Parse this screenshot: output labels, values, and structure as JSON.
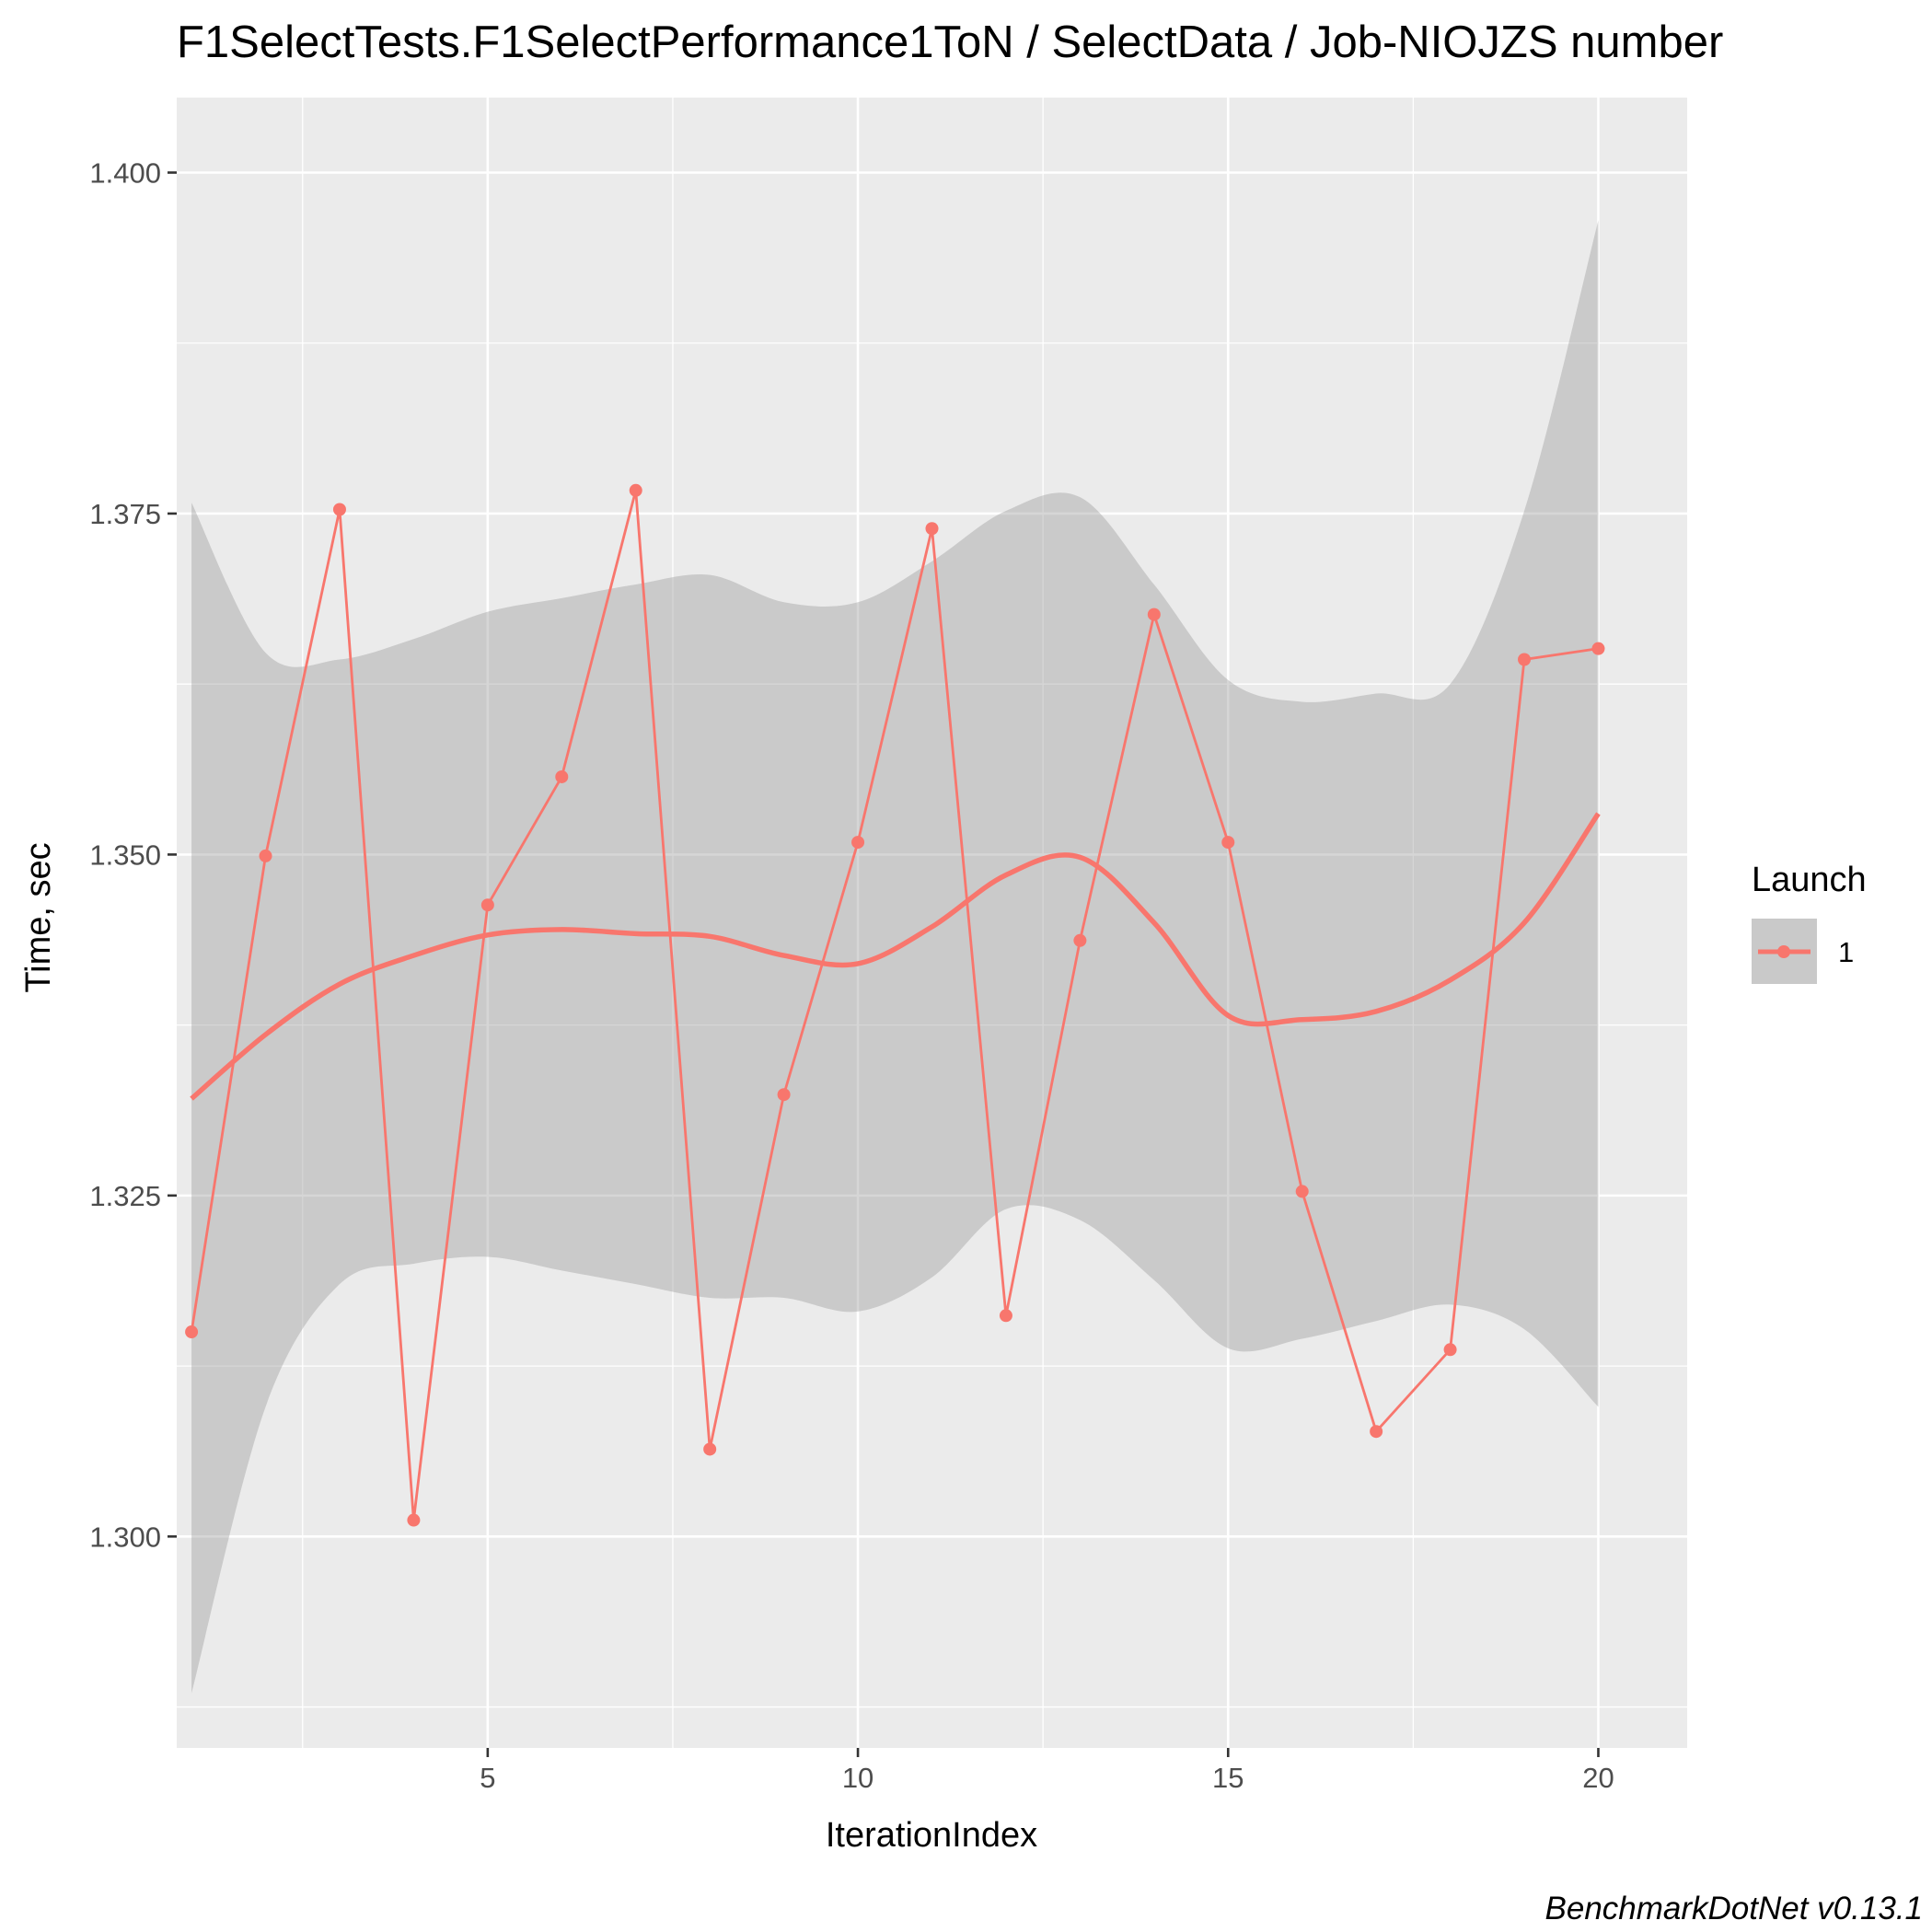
{
  "chart_data": {
    "type": "line",
    "title": "F1SelectTests.F1SelectPerformance1ToN / SelectData / Job-NIOJZS number",
    "xlabel": "IterationIndex",
    "ylabel": "Time, sec",
    "xlim": [
      0.8,
      21.2
    ],
    "ylim": [
      1.2845,
      1.4055
    ],
    "x_ticks": [
      5,
      10,
      15,
      20
    ],
    "x_tick_labels": [
      "5",
      "10",
      "15",
      "20"
    ],
    "y_ticks": [
      1.3,
      1.325,
      1.35,
      1.375,
      1.4
    ],
    "y_tick_labels": [
      "1.300",
      "1.325",
      "1.350",
      "1.375",
      "1.400"
    ],
    "grid": true,
    "legend": {
      "title": "Launch",
      "position": "right",
      "entries": [
        "1"
      ]
    },
    "caption": "BenchmarkDotNet v0.13.1",
    "colors": {
      "series": "#f8766d",
      "ribbon": "#999999",
      "panel": "#ebebeb",
      "grid": "#ffffff"
    },
    "series": [
      {
        "name": "1",
        "x": [
          1,
          2,
          3,
          4,
          5,
          6,
          7,
          8,
          9,
          10,
          11,
          12,
          13,
          14,
          15,
          16,
          17,
          18,
          19,
          20
        ],
        "values": [
          1.315,
          1.3499,
          1.3753,
          1.3012,
          1.3463,
          1.3557,
          1.3767,
          1.3064,
          1.3324,
          1.3509,
          1.3739,
          1.3162,
          1.3437,
          1.3676,
          1.3509,
          1.3253,
          1.3077,
          1.3137,
          1.3643,
          1.3651
        ]
      }
    ],
    "smooth": {
      "x": [
        1,
        2,
        3,
        4,
        5,
        6,
        7,
        8,
        9,
        10,
        11,
        12,
        13,
        14,
        15,
        16,
        17,
        18,
        19,
        20
      ],
      "fit": [
        1.3321,
        1.3368,
        1.3405,
        1.3426,
        1.3441,
        1.3445,
        1.3442,
        1.344,
        1.3426,
        1.342,
        1.3447,
        1.3485,
        1.3498,
        1.345,
        1.3382,
        1.3379,
        1.3385,
        1.3408,
        1.345,
        1.353
      ],
      "lower": [
        1.2885,
        1.3095,
        1.3185,
        1.32,
        1.3205,
        1.3195,
        1.3185,
        1.3175,
        1.3175,
        1.3165,
        1.319,
        1.324,
        1.3232,
        1.3188,
        1.3138,
        1.3145,
        1.3158,
        1.317,
        1.3152,
        1.3095
      ],
      "upper": [
        1.3758,
        1.3648,
        1.3643,
        1.3658,
        1.3678,
        1.3688,
        1.3698,
        1.3705,
        1.3685,
        1.3685,
        1.3715,
        1.3752,
        1.3762,
        1.3698,
        1.3628,
        1.3612,
        1.3618,
        1.3625,
        1.3752,
        1.3965
      ]
    }
  }
}
